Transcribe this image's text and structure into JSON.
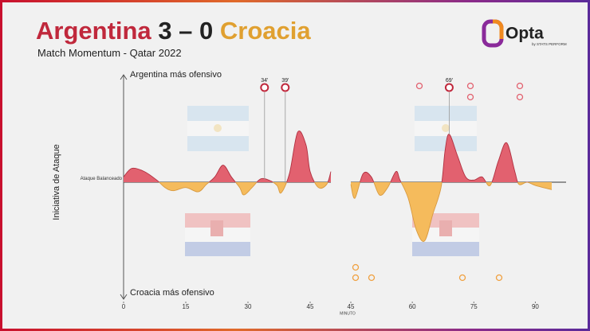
{
  "chart_data": {
    "type": "momentum",
    "title_home": "Argentina",
    "title_score": "3 – 0",
    "title_away": "Croacia",
    "home_color": "#c0283c",
    "score_color": "#222222",
    "away_color": "#e0a030",
    "subtitle": "Match Momentum - Qatar 2022",
    "logo": "Opta",
    "logo_sub": "by STATS PERFORM",
    "y_label": "Iniciativa de Ataque",
    "top_label": "Argentina más ofensivo",
    "bottom_label": "Croacia más ofensivo",
    "x_label": "MINUTO",
    "ylim": [
      -1,
      1
    ],
    "yticks": [
      {
        "value": 0,
        "label": "Ataque Balanceado"
      }
    ],
    "positive_color": "#e2616f",
    "negative_color": "#f5bb5c",
    "panels": [
      {
        "xlim": [
          0,
          50
        ],
        "xticks": [
          0,
          15,
          30,
          45
        ],
        "x": [
          0,
          2,
          5,
          8,
          10,
          12,
          15,
          18,
          20,
          22,
          24,
          26,
          28,
          29,
          31,
          33,
          35,
          37,
          38,
          40,
          42,
          44,
          45,
          47,
          49,
          50
        ],
        "values": [
          0.05,
          0.13,
          0.1,
          0.02,
          -0.05,
          -0.08,
          -0.05,
          -0.09,
          -0.02,
          0.05,
          0.16,
          0.05,
          -0.05,
          -0.12,
          -0.05,
          0.03,
          0.02,
          -0.03,
          -0.1,
          0.08,
          0.47,
          0.35,
          0.1,
          -0.05,
          -0.02,
          0.1
        ],
        "goals": [
          {
            "x": 34,
            "label": "34'"
          },
          {
            "x": 39,
            "label": "39'"
          }
        ]
      },
      {
        "xlim": [
          45,
          97.5
        ],
        "xticks": [
          45,
          60,
          75,
          90
        ],
        "x": [
          45,
          46,
          48,
          50,
          52,
          54,
          56,
          57,
          59,
          61,
          63,
          65,
          67,
          68,
          69,
          71,
          73,
          75,
          77,
          79,
          81,
          83,
          85,
          86,
          88,
          90,
          94
        ],
        "values": [
          -0.02,
          -0.15,
          0.08,
          0.05,
          -0.12,
          -0.05,
          0.1,
          0.02,
          -0.15,
          -0.45,
          -0.55,
          -0.3,
          -0.05,
          0.3,
          0.45,
          0.25,
          0.05,
          0.02,
          0.05,
          -0.03,
          0.2,
          0.37,
          0.1,
          -0.02,
          0.0,
          -0.03,
          -0.07
        ],
        "goals": [
          {
            "x": 69,
            "label": "69'"
          }
        ]
      }
    ]
  }
}
